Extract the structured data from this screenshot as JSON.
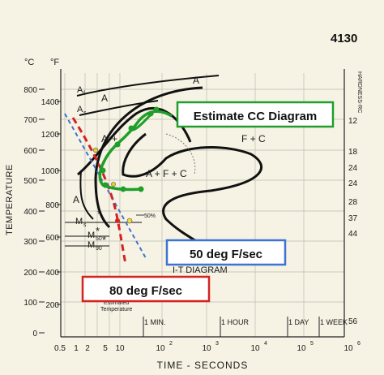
{
  "title": "4130",
  "axes": {
    "y_left_c_unit": "°C",
    "y_left_f_unit": "°F",
    "y_label": "TEMPERATURE",
    "y_right_label": "HARDNESS-RC",
    "x_label": "TIME - SECONDS",
    "c_ticks": [
      "800",
      "700",
      "600",
      "500",
      "400",
      "300",
      "200",
      "100",
      "0"
    ],
    "f_ticks": [
      "1400",
      "1200",
      "1000",
      "800",
      "600",
      "400",
      "200"
    ],
    "hardness_ticks": [
      "12",
      "18",
      "24",
      "24",
      "28",
      "37",
      "44",
      "56"
    ],
    "x_ticks": [
      "0.5",
      "1",
      "2",
      "5",
      "10",
      "10",
      "10",
      "10",
      "10"
    ],
    "x_exponents": [
      "2",
      "3",
      "4",
      "5",
      "6"
    ],
    "time_markers": [
      "1 MIN.",
      "1 HOUR",
      "1 DAY",
      "1 WEEK"
    ]
  },
  "curve_labels": {
    "af": "A",
    "af_sub": "f",
    "as": "A",
    "as_sub": "s",
    "a_top": "A",
    "a_inner1": "A",
    "a_inner2": "A",
    "a_plus": "+",
    "f_c": "F + C",
    "a_f_c": "A + F + C",
    "a_left": "A",
    "ms": "M",
    "ms_sub": "s",
    "m50": "M",
    "m50_sub": "50",
    "m90": "M",
    "m90_sub": "90",
    "pct50": "50%",
    "it_diagram": "I-T DIAGRAM",
    "estimated_temp_line1": "Estimated",
    "estimated_temp_line2": "Temperature"
  },
  "callouts": {
    "cc_diagram": "Estimate CC Diagram",
    "rate_50": "50 deg F/sec",
    "rate_80": "80 deg F/sec"
  },
  "colors": {
    "background": "#f6f3e4",
    "green": "#1f9e2a",
    "blue": "#3d73d1",
    "red": "#d42222",
    "ink": "#111111"
  }
}
